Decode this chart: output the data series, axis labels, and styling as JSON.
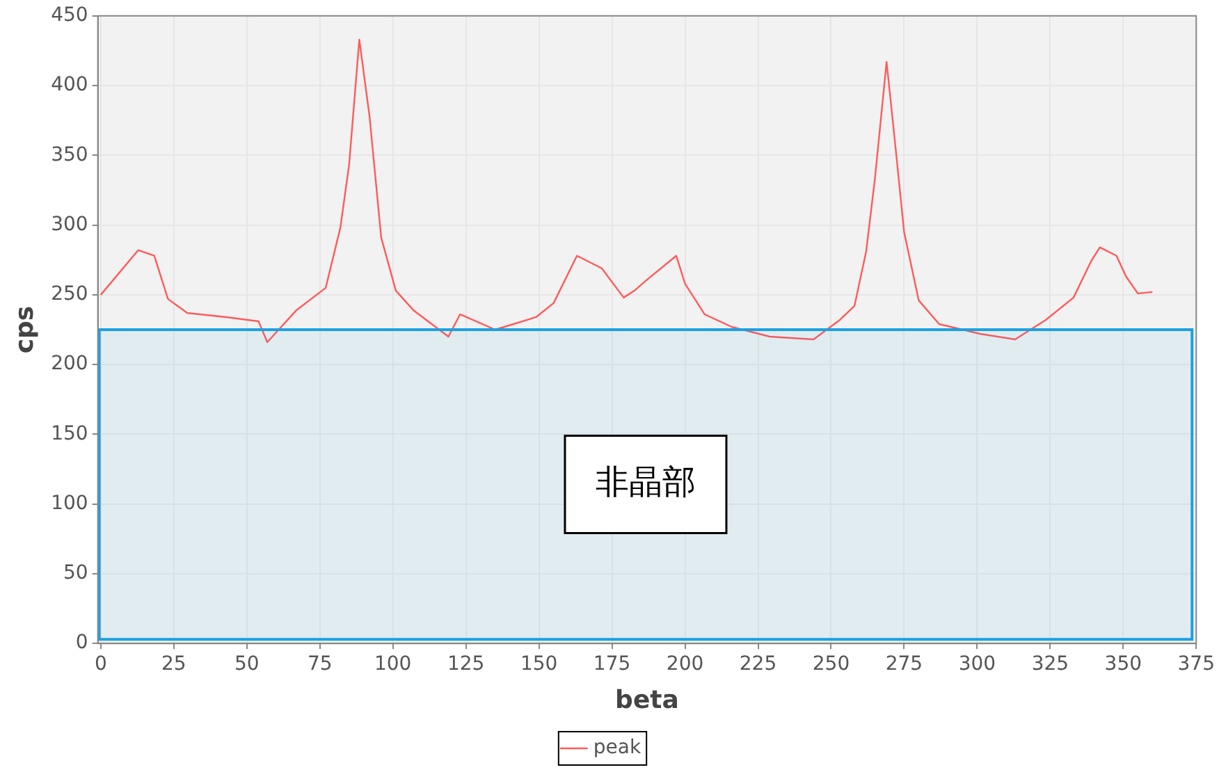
{
  "chart_data": {
    "type": "line",
    "xlabel": "beta",
    "ylabel": "cps",
    "x": [
      0,
      12.8,
      18.3,
      23,
      29.6,
      43,
      54,
      57,
      67,
      77,
      82,
      85,
      88.5,
      92,
      96,
      101,
      107,
      119,
      123,
      135,
      149,
      155,
      163,
      171.5,
      179,
      182.7,
      186.5,
      197,
      200,
      206.7,
      216,
      229,
      244,
      253,
      258,
      262,
      265,
      269,
      272,
      275,
      280,
      287,
      301,
      313,
      323.5,
      333,
      339,
      342,
      347.7,
      351,
      355,
      360
    ],
    "series": [
      {
        "name": "peak",
        "color": "#ff5a5a",
        "values": [
          250,
          282,
          278,
          247,
          237,
          234,
          231,
          216,
          239,
          255,
          298,
          343,
          433,
          378,
          291,
          253,
          239,
          220,
          236,
          225,
          234,
          244,
          278,
          269,
          248,
          253,
          260,
          278,
          258,
          236,
          227,
          220,
          218,
          232,
          242,
          281,
          333,
          417,
          357,
          295,
          246,
          229,
          222,
          218,
          232,
          248,
          274,
          284,
          278,
          263,
          251,
          252
        ]
      }
    ],
    "xlim": [
      -1,
      375
    ],
    "xticks": [
      0,
      25,
      50,
      75,
      100,
      125,
      150,
      175,
      200,
      225,
      250,
      275,
      300,
      325,
      350,
      375
    ],
    "ylim": [
      0,
      450
    ],
    "yticks": [
      0,
      50,
      100,
      150,
      200,
      250,
      300,
      350,
      400,
      450
    ],
    "grid": true,
    "legend": "bottom",
    "marker": "none",
    "line_style": "solid",
    "bands": [
      {
        "axis": "y",
        "from": 3,
        "to": 225,
        "label": "非晶部",
        "color": "#1ba1e2"
      }
    ]
  }
}
